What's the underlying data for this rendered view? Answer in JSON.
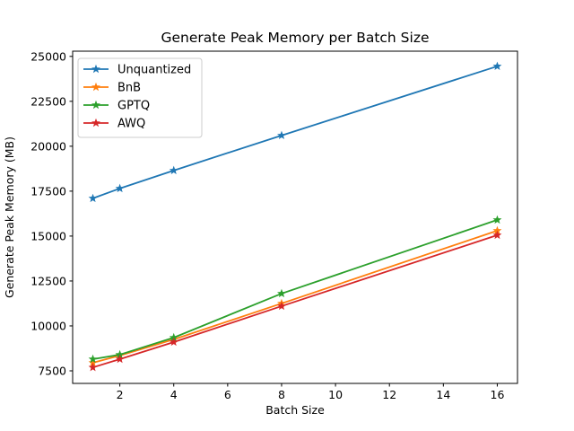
{
  "figure": {
    "background": "#ffffff",
    "axis_color": "#000000",
    "legend_border_color": "#cccccc",
    "legend_background": "#ffffff"
  },
  "chart_data": {
    "type": "line",
    "title": "Generate Peak Memory per Batch Size",
    "xlabel": "Batch Size",
    "ylabel": "Generate Peak Memory (MB)",
    "x": [
      1,
      2,
      4,
      8,
      16
    ],
    "series": [
      {
        "name": "Unquantized",
        "color": "#1f77b4",
        "marker": "star",
        "values": [
          17100,
          17650,
          18650,
          20600,
          24450
        ]
      },
      {
        "name": "BnB",
        "color": "#ff7f0e",
        "marker": "star",
        "values": [
          7950,
          8350,
          9250,
          11250,
          15300
        ]
      },
      {
        "name": "GPTQ",
        "color": "#2ca02c",
        "marker": "star",
        "values": [
          8150,
          8400,
          9350,
          11800,
          15900
        ]
      },
      {
        "name": "AWQ",
        "color": "#d62728",
        "marker": "star",
        "values": [
          7690,
          8150,
          9100,
          11100,
          15050
        ]
      }
    ],
    "x_ticks": [
      2,
      4,
      6,
      8,
      10,
      12,
      14,
      16
    ],
    "y_ticks": [
      7500,
      10000,
      12500,
      15000,
      17500,
      20000,
      22500,
      25000
    ],
    "xlim": [
      0.25,
      16.75
    ],
    "ylim": [
      6800,
      25290
    ],
    "grid": false,
    "legend_position": "upper-left"
  }
}
